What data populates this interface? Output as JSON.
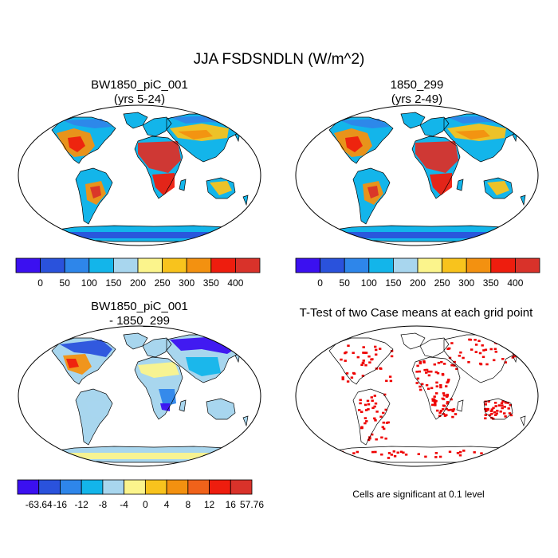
{
  "title": "JJA FSDSNDLN (W/m^2)",
  "chart_data": [
    {
      "type": "heatmap",
      "title": "BW1850_piC_001",
      "subtitle": "(yrs 5-24)",
      "projection": "Robinson",
      "colorbar": {
        "labels": [
          "0",
          "50",
          "100",
          "150",
          "200",
          "250",
          "300",
          "350",
          "400"
        ],
        "colors": [
          "#3b10f0",
          "#2a52dc",
          "#2e86ea",
          "#13b5ea",
          "#a8d6ee",
          "#fbf48c",
          "#f8c31d",
          "#f39110",
          "#ee1d0e",
          "#d9322a"
        ]
      }
    },
    {
      "type": "heatmap",
      "title": "1850_299",
      "subtitle": "(yrs 2-49)",
      "projection": "Robinson",
      "colorbar": {
        "labels": [
          "0",
          "50",
          "100",
          "150",
          "200",
          "250",
          "300",
          "350",
          "400"
        ],
        "colors": [
          "#3b10f0",
          "#2a52dc",
          "#2e86ea",
          "#13b5ea",
          "#a8d6ee",
          "#fbf48c",
          "#f8c31d",
          "#f39110",
          "#ee1d0e",
          "#d9322a"
        ]
      }
    },
    {
      "type": "heatmap",
      "title": "BW1850_piC_001",
      "subtitle": "- 1850_299",
      "projection": "Robinson",
      "colorbar": {
        "labels": [
          "-63.64",
          "-16",
          "-12",
          "-8",
          "-4",
          "0",
          "4",
          "8",
          "12",
          "16",
          "57.76"
        ],
        "colors": [
          "#3b10f0",
          "#2a52dc",
          "#2e86ea",
          "#13b5ea",
          "#a8d6ee",
          "#fbf48c",
          "#f8c31d",
          "#f39110",
          "#f0621a",
          "#ee1d0e",
          "#d9322a"
        ]
      }
    },
    {
      "type": "heatmap",
      "title": "T-Test of two Case means at each grid point",
      "projection": "Robinson",
      "significant_color": "#ee0000",
      "note": "Cells are significant at 0.1 level"
    }
  ]
}
